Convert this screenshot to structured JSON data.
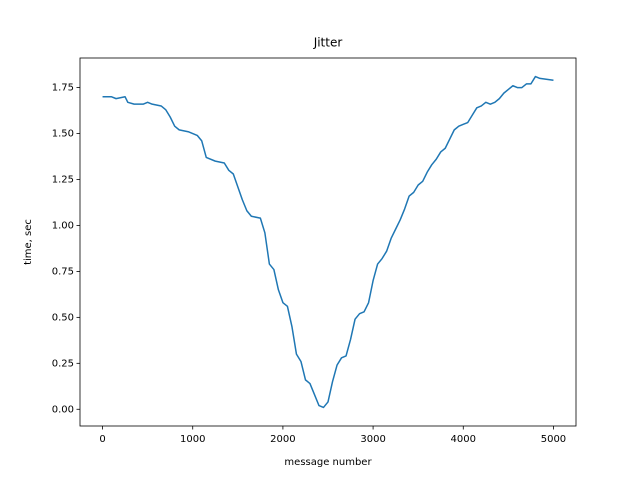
{
  "chart_data": {
    "type": "line",
    "title": "Jitter",
    "x_label": "message number",
    "y_label": "time, sec",
    "x": [
      0,
      100,
      150,
      250,
      280,
      350,
      450,
      500,
      550,
      650,
      700,
      750,
      800,
      850,
      950,
      1050,
      1100,
      1150,
      1250,
      1350,
      1400,
      1450,
      1550,
      1600,
      1650,
      1750,
      1800,
      1850,
      1900,
      1950,
      2000,
      2050,
      2100,
      2150,
      2200,
      2250,
      2300,
      2350,
      2400,
      2450,
      2500,
      2550,
      2600,
      2650,
      2700,
      2750,
      2800,
      2850,
      2900,
      2950,
      3000,
      3050,
      3100,
      3150,
      3200,
      3250,
      3300,
      3350,
      3400,
      3450,
      3500,
      3550,
      3600,
      3650,
      3700,
      3750,
      3800,
      3850,
      3900,
      3950,
      4000,
      4050,
      4100,
      4150,
      4200,
      4250,
      4300,
      4350,
      4400,
      4450,
      4500,
      4550,
      4600,
      4650,
      4700,
      4750,
      4800,
      4850,
      5000
    ],
    "series": [
      {
        "name": "jitter",
        "color": "#1f77b4",
        "values": [
          1.7,
          1.7,
          1.69,
          1.7,
          1.67,
          1.66,
          1.66,
          1.67,
          1.66,
          1.65,
          1.63,
          1.59,
          1.54,
          1.52,
          1.51,
          1.49,
          1.46,
          1.37,
          1.35,
          1.34,
          1.3,
          1.28,
          1.14,
          1.08,
          1.05,
          1.04,
          0.96,
          0.79,
          0.76,
          0.65,
          0.58,
          0.56,
          0.45,
          0.3,
          0.26,
          0.16,
          0.14,
          0.08,
          0.02,
          0.01,
          0.04,
          0.15,
          0.24,
          0.28,
          0.29,
          0.38,
          0.49,
          0.52,
          0.53,
          0.58,
          0.7,
          0.79,
          0.82,
          0.86,
          0.93,
          0.98,
          1.03,
          1.09,
          1.16,
          1.18,
          1.22,
          1.24,
          1.29,
          1.33,
          1.36,
          1.4,
          1.42,
          1.47,
          1.52,
          1.54,
          1.55,
          1.56,
          1.6,
          1.64,
          1.65,
          1.67,
          1.66,
          1.67,
          1.69,
          1.72,
          1.74,
          1.76,
          1.75,
          1.75,
          1.77,
          1.77,
          1.81,
          1.8,
          1.79
        ]
      }
    ],
    "xlim": [
      -250,
      5250
    ],
    "xticks": [
      0,
      1000,
      2000,
      3000,
      4000,
      5000
    ],
    "ylim": [
      -0.091,
      1.911
    ],
    "yticks": [
      {
        "value": 0,
        "label": "0.00"
      },
      0.25,
      {
        "value": 0.5,
        "label": "0.50"
      },
      0.75,
      {
        "value": 1,
        "label": "1.00"
      },
      1.25,
      {
        "value": 1.5,
        "label": "1.50"
      },
      1.75
    ]
  }
}
